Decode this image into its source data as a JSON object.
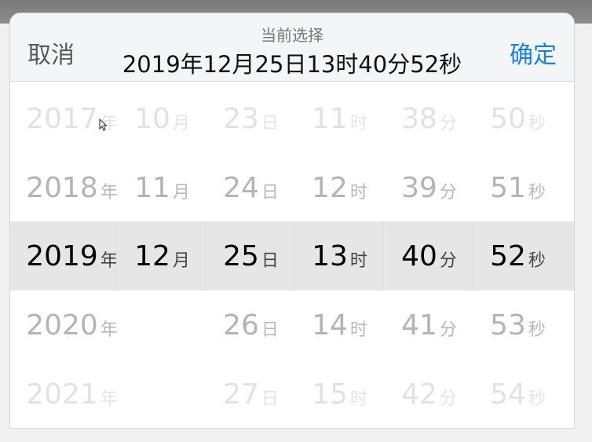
{
  "header": {
    "cancel_label": "取消",
    "confirm_label": "确定",
    "current_label": "当前选择",
    "current_value": "2019年12月25日13时40分52秒"
  },
  "colors": {
    "confirm": "#1a7fe5",
    "cancel": "#555a60",
    "selected_band": "#e6e6e6"
  },
  "columns": [
    {
      "name": "year",
      "unit": "年",
      "items": [
        "2017",
        "2018",
        "2019",
        "2020",
        "2021"
      ]
    },
    {
      "name": "month",
      "unit": "月",
      "items": [
        "10",
        "11",
        "12",
        "",
        ""
      ]
    },
    {
      "name": "day",
      "unit": "日",
      "items": [
        "23",
        "24",
        "25",
        "26",
        "27"
      ]
    },
    {
      "name": "hour",
      "unit": "时",
      "items": [
        "11",
        "12",
        "13",
        "14",
        "15"
      ]
    },
    {
      "name": "minute",
      "unit": "分",
      "items": [
        "38",
        "39",
        "40",
        "41",
        "42"
      ]
    },
    {
      "name": "second",
      "unit": "秒",
      "items": [
        "50",
        "51",
        "52",
        "53",
        "54"
      ]
    }
  ]
}
